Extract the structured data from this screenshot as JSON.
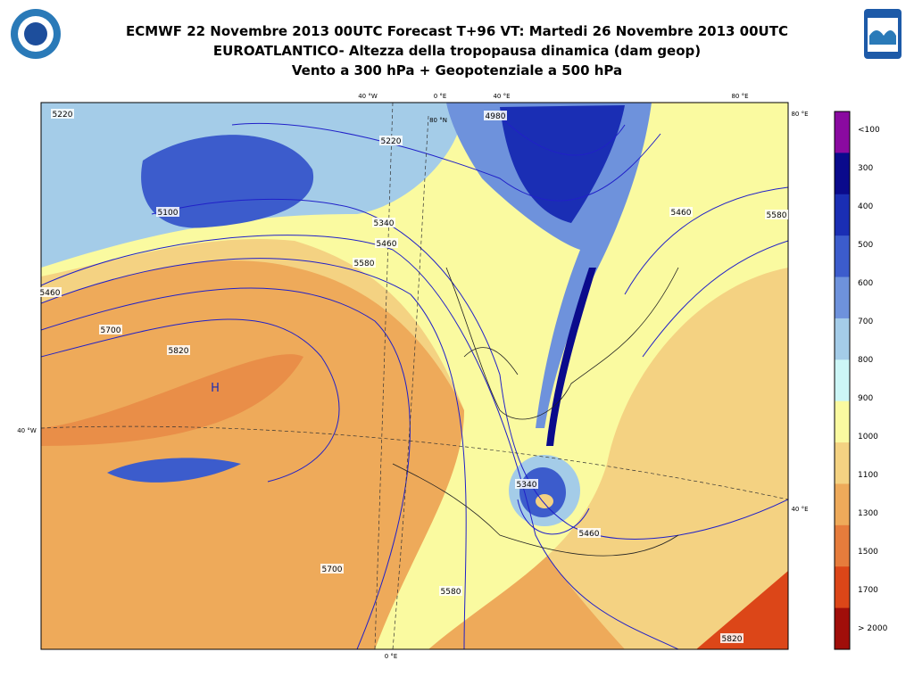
{
  "header": {
    "title_lines": [
      "ECMWF 22 Novembre 2013 00UTC Forecast T+96 VT: Martedi 26 Novembre 2013 00UTC",
      "EUROATLANTICO- Altezza della tropopausa dinamica (dam geop)",
      "Vento a 300 hPa   +  Geopotenziale a 500 hPa"
    ]
  },
  "colorbar": {
    "colors": [
      "#8a0aa0",
      "#0a0a8c",
      "#1a2eb4",
      "#3c5ccc",
      "#6e92dc",
      "#a4cce8",
      "#ccf6f6",
      "#fafaa0",
      "#f4d282",
      "#eeaa5a",
      "#e67c3c",
      "#dc4618",
      "#a00e0a"
    ],
    "labels": [
      "<100",
      "300",
      "400",
      "500",
      "600",
      "700",
      "800",
      "900",
      "1000",
      "1100",
      "1300",
      "1500",
      "1700",
      "> 2000"
    ]
  },
  "map": {
    "coord_labels": [
      {
        "text": "40 °W",
        "pos": "top"
      },
      {
        "text": "0 °E",
        "pos": "top"
      },
      {
        "text": "40 °E",
        "pos": "top"
      },
      {
        "text": "80 °E",
        "pos": "top"
      },
      {
        "text": "80 °N",
        "pos": "inner"
      },
      {
        "text": "80 °E",
        "pos": "right"
      },
      {
        "text": "40 °E",
        "pos": "right"
      },
      {
        "text": "40 °W",
        "pos": "left"
      },
      {
        "text": "0 °E",
        "pos": "bottom"
      }
    ],
    "contour_labels": [
      "5220",
      "5100",
      "4980",
      "5220",
      "5340",
      "5460",
      "5580",
      "5460",
      "5580",
      "5700",
      "5820",
      "5340",
      "5460",
      "5700",
      "5580",
      "5820",
      "5460"
    ],
    "high_label": "H"
  }
}
